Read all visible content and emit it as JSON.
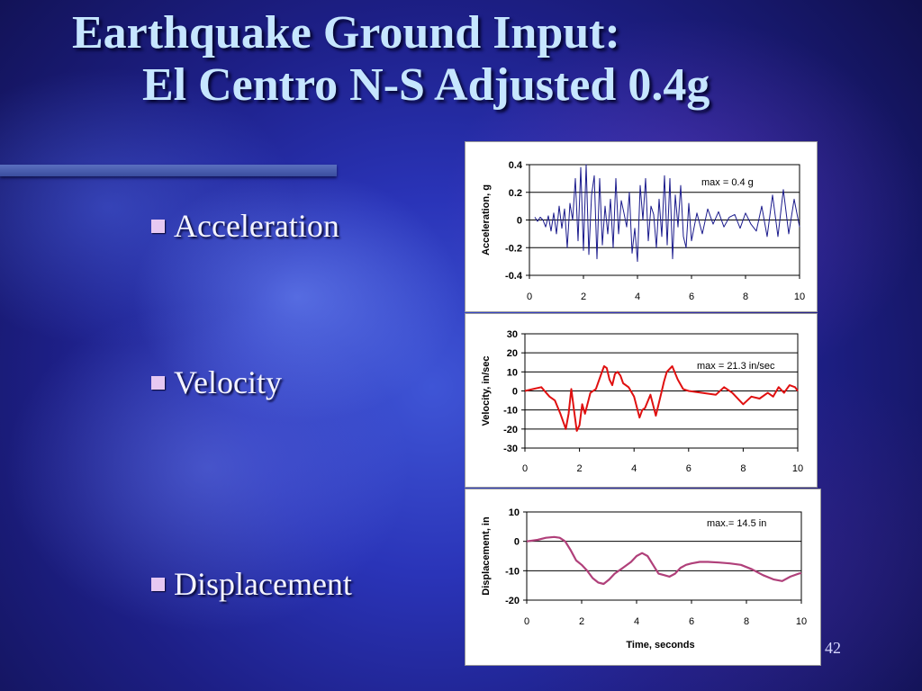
{
  "slide": {
    "title_line1": "Earthquake Ground Input:",
    "title_line2": "El Centro N-S Adjusted 0.4g",
    "bullets": [
      "Acceleration",
      "Velocity",
      "Displacement"
    ],
    "slide_number": "42"
  },
  "colors": {
    "acceleration": "#1a1a8c",
    "velocity": "#e01010",
    "displacement": "#b0407a"
  },
  "chart_data": [
    {
      "type": "line",
      "ylabel": "Acceleration, g",
      "xlabel": "",
      "xlim": [
        0,
        10
      ],
      "ylim": [
        -0.4,
        0.4
      ],
      "xticks": [
        "0",
        "2",
        "4",
        "6",
        "8",
        "10"
      ],
      "yticks": [
        "0.4",
        "0.2",
        "0",
        "-0.2",
        "-0.4"
      ],
      "annotation": "max = 0.4 g",
      "grid": "horizontal",
      "series": [
        {
          "x": [
            0.2,
            0.3,
            0.4,
            0.5,
            0.6,
            0.7,
            0.8,
            0.9,
            1.0,
            1.1,
            1.2,
            1.3,
            1.4,
            1.5,
            1.6,
            1.7,
            1.8,
            1.9,
            2.0,
            2.1,
            2.2,
            2.3,
            2.4,
            2.5,
            2.6,
            2.7,
            2.8,
            2.9,
            3.0,
            3.1,
            3.2,
            3.3,
            3.4,
            3.5,
            3.6,
            3.7,
            3.8,
            3.9,
            4.0,
            4.1,
            4.2,
            4.3,
            4.4,
            4.5,
            4.6,
            4.7,
            4.8,
            4.9,
            5.0,
            5.1,
            5.2,
            5.3,
            5.4,
            5.5,
            5.6,
            5.7,
            5.8,
            5.9,
            6.0,
            6.2,
            6.4,
            6.6,
            6.8,
            7.0,
            7.2,
            7.4,
            7.6,
            7.8,
            8.0,
            8.2,
            8.4,
            8.6,
            8.8,
            9.0,
            9.2,
            9.4,
            9.6,
            9.8,
            10.0
          ],
          "y": [
            0.02,
            -0.01,
            0.02,
            0.0,
            -0.05,
            0.03,
            -0.08,
            0.05,
            -0.1,
            0.1,
            -0.06,
            0.08,
            -0.2,
            0.12,
            0.0,
            0.3,
            -0.15,
            0.38,
            -0.22,
            0.4,
            -0.25,
            0.18,
            0.32,
            -0.28,
            0.3,
            -0.18,
            0.1,
            -0.1,
            0.15,
            -0.2,
            0.3,
            -0.1,
            0.14,
            0.05,
            -0.05,
            0.2,
            -0.24,
            -0.06,
            -0.3,
            0.25,
            0.0,
            0.3,
            -0.15,
            0.1,
            0.04,
            -0.2,
            0.15,
            -0.12,
            0.32,
            -0.18,
            0.3,
            -0.28,
            0.18,
            -0.05,
            0.25,
            -0.12,
            -0.2,
            0.12,
            -0.15,
            0.05,
            -0.1,
            0.08,
            -0.03,
            0.06,
            -0.05,
            0.02,
            0.04,
            -0.06,
            0.05,
            -0.03,
            -0.08,
            0.1,
            -0.12,
            0.18,
            -0.12,
            0.22,
            -0.1,
            0.15,
            -0.05
          ]
        }
      ]
    },
    {
      "type": "line",
      "ylabel": "Velocity, in/sec",
      "xlabel": "",
      "xlim": [
        0,
        10
      ],
      "ylim": [
        -30,
        30
      ],
      "xticks": [
        "0",
        "2",
        "4",
        "6",
        "8",
        "10"
      ],
      "yticks": [
        "30",
        "20",
        "10",
        "0",
        "-10",
        "-20",
        "-30"
      ],
      "annotation": "max = 21.3 in/sec",
      "grid": "horizontal",
      "series": [
        {
          "x": [
            0,
            0.3,
            0.6,
            0.9,
            1.1,
            1.3,
            1.5,
            1.6,
            1.7,
            1.8,
            1.9,
            2.0,
            2.1,
            2.2,
            2.4,
            2.6,
            2.8,
            2.9,
            3.0,
            3.1,
            3.2,
            3.3,
            3.4,
            3.5,
            3.6,
            3.8,
            4.0,
            4.2,
            4.3,
            4.4,
            4.6,
            4.8,
            5.0,
            5.1,
            5.2,
            5.4,
            5.6,
            5.8,
            6.0,
            6.5,
            7.0,
            7.3,
            7.6,
            8.0,
            8.3,
            8.6,
            8.9,
            9.1,
            9.3,
            9.5,
            9.7,
            9.9,
            10.0
          ],
          "y": [
            0,
            1,
            2,
            -3,
            -5,
            -12,
            -20,
            -12,
            1,
            -10,
            -21,
            -18,
            -7,
            -12,
            -1,
            1,
            9,
            13,
            12,
            6,
            3,
            9,
            10,
            8,
            4,
            2,
            -3,
            -14,
            -10,
            -9,
            -2,
            -13,
            -1,
            5,
            10,
            13,
            6,
            1,
            0,
            -1,
            -2,
            2,
            -1,
            -7,
            -3,
            -4,
            -1,
            -3,
            2,
            -1,
            3,
            2,
            0
          ]
        }
      ]
    },
    {
      "type": "line",
      "ylabel": "Displacement, in",
      "xlabel": "Time, seconds",
      "xlim": [
        0,
        10
      ],
      "ylim": [
        -20,
        10
      ],
      "xticks": [
        "0",
        "2",
        "4",
        "6",
        "8",
        "10"
      ],
      "yticks": [
        "10",
        "0",
        "-10",
        "-20"
      ],
      "annotation": "max.= 14.5 in",
      "grid": "horizontal",
      "series": [
        {
          "x": [
            0,
            0.4,
            0.7,
            1.0,
            1.2,
            1.4,
            1.6,
            1.8,
            2.0,
            2.2,
            2.4,
            2.6,
            2.8,
            3.0,
            3.2,
            3.5,
            3.8,
            4.0,
            4.2,
            4.4,
            4.6,
            4.8,
            5.0,
            5.2,
            5.4,
            5.6,
            5.8,
            6.0,
            6.3,
            6.6,
            7.0,
            7.4,
            7.8,
            8.2,
            8.6,
            9.0,
            9.3,
            9.6,
            9.9,
            10.0
          ],
          "y": [
            0,
            0.5,
            1.2,
            1.5,
            1.2,
            0,
            -3,
            -6.5,
            -8,
            -10,
            -12.5,
            -14,
            -14.5,
            -13,
            -11,
            -9,
            -7,
            -5,
            -4,
            -5,
            -8,
            -11,
            -11.5,
            -12,
            -11,
            -9,
            -8,
            -7.5,
            -7,
            -7,
            -7.2,
            -7.5,
            -8,
            -9.5,
            -11.5,
            -13,
            -13.5,
            -12,
            -11,
            -10.8
          ]
        }
      ]
    }
  ]
}
